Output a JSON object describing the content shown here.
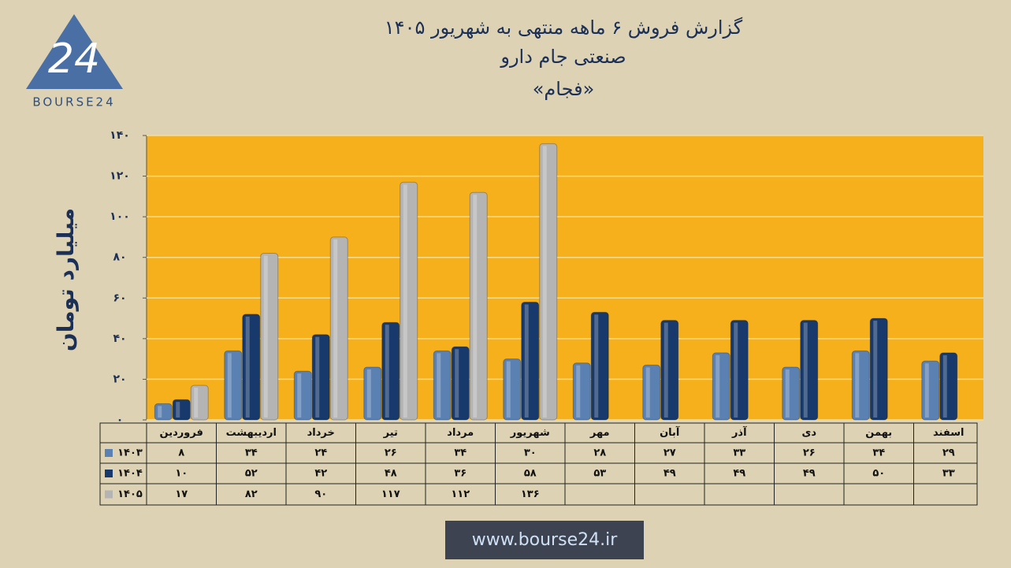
{
  "logo": {
    "mark": "24",
    "text": "BOURSE24"
  },
  "footer_url": "www.bourse24.ir",
  "chart_data": {
    "type": "bar",
    "title": "گزارش فروش ۶ ماهه منتهی به شهریور ۱۴۰۵",
    "subtitle": "صنعتی جام دارو",
    "symbol": "«فجام»",
    "y_label": "میلیارد تومان",
    "categories": [
      "فروردین",
      "اردیبهشت",
      "خرداد",
      "تیر",
      "مرداد",
      "شهریور",
      "مهر",
      "آبان",
      "آذر",
      "دی",
      "بهمن",
      "اسفند"
    ],
    "series": [
      {
        "name": "۱۴۰۳",
        "color": "#5b80b2",
        "values": [
          8,
          34,
          24,
          26,
          34,
          30,
          28,
          27,
          33,
          26,
          34,
          29
        ],
        "value_labels": [
          "۸",
          "۳۴",
          "۲۴",
          "۲۶",
          "۳۴",
          "۳۰",
          "۲۸",
          "۲۷",
          "۳۳",
          "۲۶",
          "۳۴",
          "۲۹"
        ]
      },
      {
        "name": "۱۴۰۴",
        "color": "#17396b",
        "values": [
          10,
          52,
          42,
          48,
          36,
          58,
          53,
          49,
          49,
          49,
          50,
          33
        ],
        "value_labels": [
          "۱۰",
          "۵۲",
          "۴۲",
          "۴۸",
          "۳۶",
          "۵۸",
          "۵۳",
          "۴۹",
          "۴۹",
          "۴۹",
          "۵۰",
          "۳۳"
        ]
      },
      {
        "name": "۱۴۰۵",
        "color": "#b4b4b4",
        "values": [
          17,
          82,
          90,
          117,
          112,
          136,
          null,
          null,
          null,
          null,
          null,
          null
        ],
        "value_labels": [
          "۱۷",
          "۸۲",
          "۹۰",
          "۱۱۷",
          "۱۱۲",
          "۱۳۶",
          null,
          null,
          null,
          null,
          null,
          null
        ]
      }
    ],
    "ylim": [
      0,
      140
    ],
    "yticks": [
      {
        "value": 0,
        "label": "۰"
      },
      {
        "value": 20,
        "label": "۲۰"
      },
      {
        "value": 40,
        "label": "۴۰"
      },
      {
        "value": 60,
        "label": "۶۰"
      },
      {
        "value": 80,
        "label": "۸۰"
      },
      {
        "value": 100,
        "label": "۱۰۰"
      },
      {
        "value": 120,
        "label": "۱۲۰"
      },
      {
        "value": 140,
        "label": "۱۴۰"
      }
    ],
    "grid": true,
    "plot_color": "#f6b01c"
  }
}
